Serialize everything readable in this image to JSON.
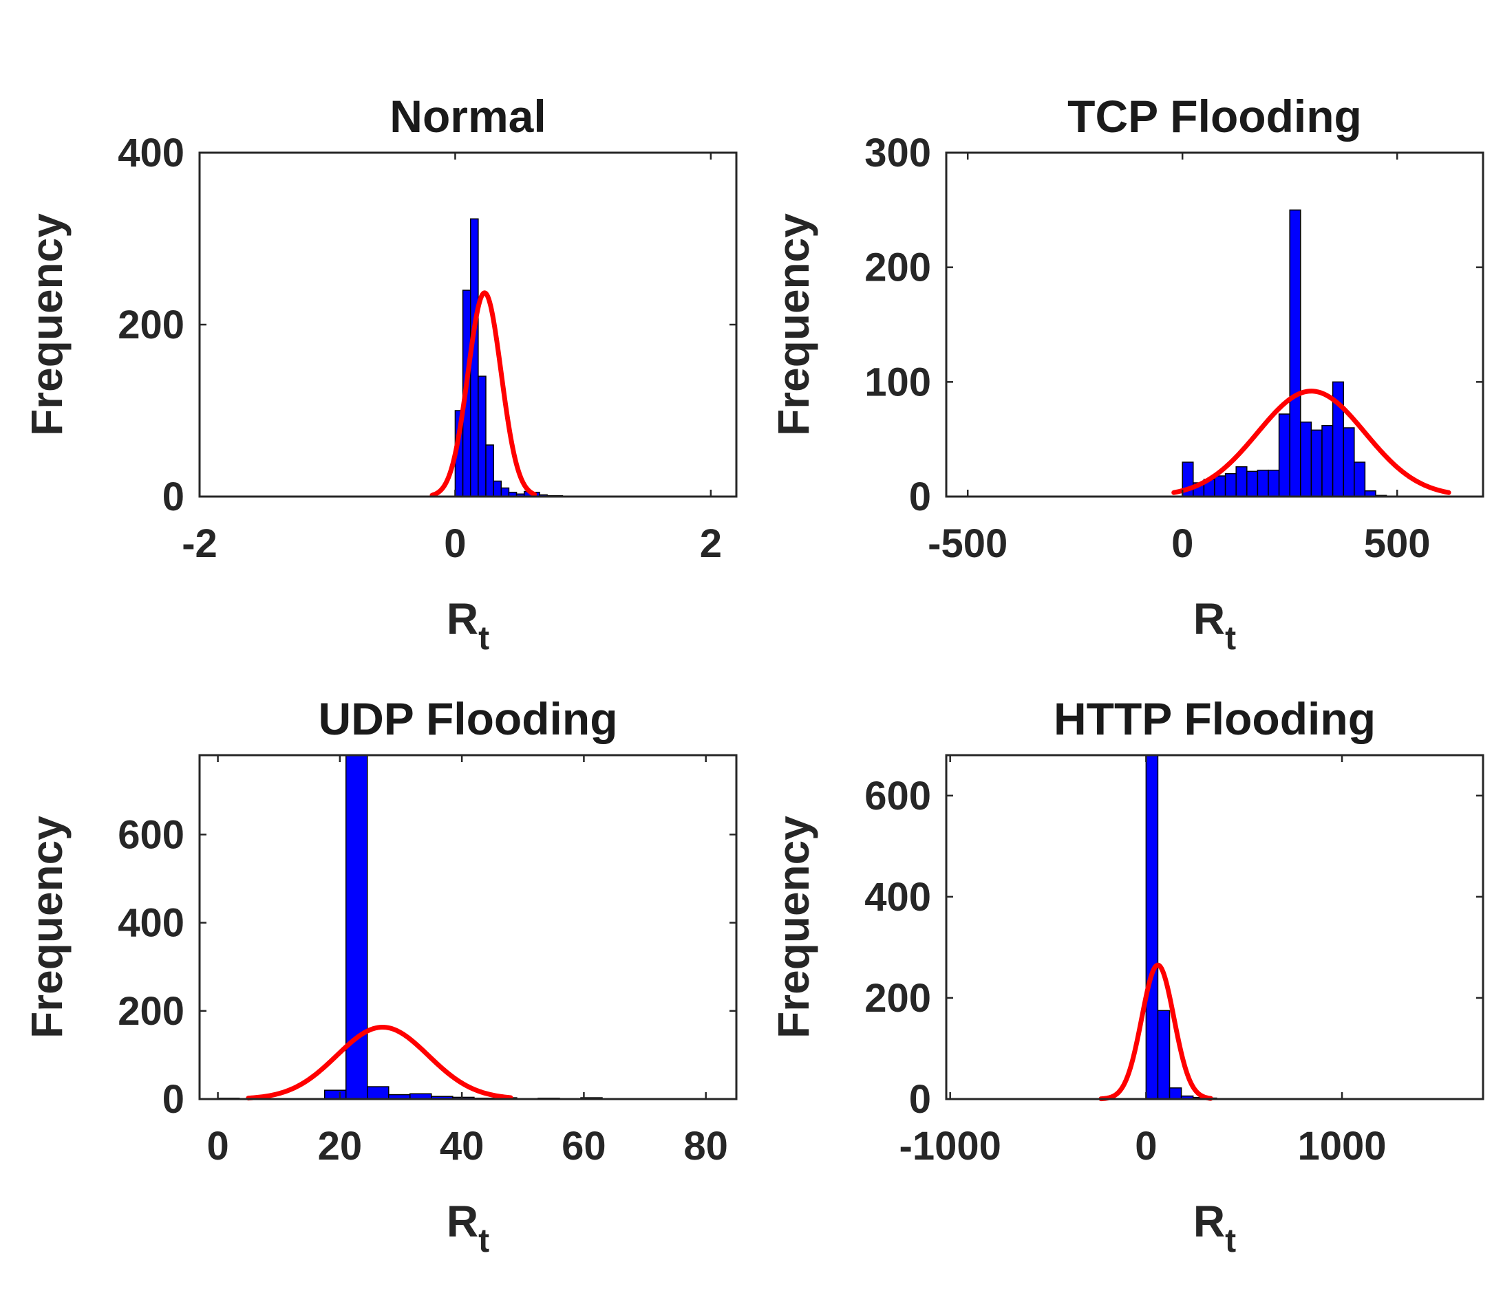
{
  "chart_data": [
    {
      "type": "bar",
      "title": "Normal",
      "xlabel": "R",
      "xlabel_sub": "t",
      "ylabel": "Frequency",
      "xlim": [
        -2,
        2.2
      ],
      "ylim": [
        0,
        400
      ],
      "xticks": [
        -2,
        0,
        2
      ],
      "xtick_labels": [
        "-2",
        "0",
        "2"
      ],
      "yticks": [
        0,
        200,
        400
      ],
      "ytick_labels": [
        "0",
        "200",
        "400"
      ],
      "histogram": {
        "bin_edges": [
          0.0,
          0.06,
          0.12,
          0.18,
          0.24,
          0.3,
          0.36,
          0.42,
          0.48,
          0.54,
          0.6,
          0.66,
          0.72,
          0.78,
          0.84
        ],
        "counts": [
          100,
          240,
          323,
          140,
          60,
          18,
          10,
          5,
          3,
          6,
          5,
          2,
          1,
          1
        ]
      },
      "fit": {
        "type": "normal",
        "mu": 0.23,
        "peak": 237,
        "sigma": 0.13,
        "x_range": [
          -0.18,
          0.62
        ]
      }
    },
    {
      "type": "bar",
      "title": "TCP Flooding",
      "xlabel": "R",
      "xlabel_sub": "t",
      "ylabel": "Frequency",
      "xlim": [
        -550,
        700
      ],
      "ylim": [
        0,
        300
      ],
      "xticks": [
        -500,
        0,
        500
      ],
      "xtick_labels": [
        "-500",
        "0",
        "500"
      ],
      "yticks": [
        0,
        100,
        200,
        300
      ],
      "ytick_labels": [
        "0",
        "100",
        "200",
        "300"
      ],
      "histogram": {
        "bin_edges": [
          0,
          25,
          50,
          75,
          100,
          125,
          150,
          175,
          200,
          225,
          250,
          275,
          300,
          325,
          350,
          375,
          400,
          425,
          450,
          475
        ],
        "counts": [
          30,
          12,
          15,
          18,
          20,
          26,
          22,
          23,
          23,
          72,
          250,
          65,
          58,
          62,
          100,
          60,
          30,
          5,
          1
        ]
      },
      "fit": {
        "type": "normal",
        "mu": 300,
        "peak": 92,
        "sigma": 125,
        "x_range": [
          -20,
          620
        ]
      }
    },
    {
      "type": "bar",
      "title": "UDP Flooding",
      "xlabel": "R",
      "xlabel_sub": "t",
      "ylabel": "Frequency",
      "xlim": [
        -3,
        85
      ],
      "ylim": [
        0,
        780
      ],
      "xticks": [
        0,
        20,
        40,
        60,
        80
      ],
      "xtick_labels": [
        "0",
        "20",
        "40",
        "60",
        "80"
      ],
      "yticks": [
        0,
        200,
        400,
        600
      ],
      "ytick_labels": [
        "0",
        "200",
        "400",
        "600"
      ],
      "histogram": {
        "bin_edges": [
          0,
          3.5,
          7,
          10.5,
          14,
          17.5,
          21,
          24.5,
          28,
          31.5,
          35,
          38.5,
          42,
          45.5,
          49,
          52.5,
          56,
          59.5,
          63,
          66.5
        ],
        "counts": [
          2,
          1,
          1,
          1,
          1,
          20,
          780,
          28,
          10,
          12,
          6,
          4,
          2,
          3,
          1,
          2,
          1,
          3,
          1
        ]
      },
      "fit": {
        "type": "normal",
        "mu": 27,
        "peak": 163,
        "sigma": 7.5,
        "x_range": [
          5,
          48
        ]
      }
    },
    {
      "type": "bar",
      "title": "HTTP Flooding",
      "xlabel": "R",
      "xlabel_sub": "t",
      "ylabel": "Frequency",
      "xlim": [
        -1020,
        1720
      ],
      "ylim": [
        0,
        680
      ],
      "xticks": [
        -1000,
        0,
        1000
      ],
      "xtick_labels": [
        "-1000",
        "0",
        "1000"
      ],
      "yticks": [
        0,
        200,
        400,
        600
      ],
      "ytick_labels": [
        "0",
        "200",
        "400",
        "600"
      ],
      "histogram": {
        "bin_edges": [
          0,
          60,
          120,
          180,
          240,
          300,
          360,
          420,
          480
        ],
        "counts": [
          680,
          175,
          22,
          6,
          3,
          2,
          1,
          1
        ]
      },
      "fit": {
        "type": "normal",
        "mu": 60,
        "peak": 265,
        "sigma": 82,
        "x_range": [
          -230,
          330
        ]
      }
    }
  ],
  "style": {
    "bar_color": "#0000ff",
    "bar_edge": "#000000",
    "fit_color": "#ff0000",
    "axis_color": "#262626"
  }
}
